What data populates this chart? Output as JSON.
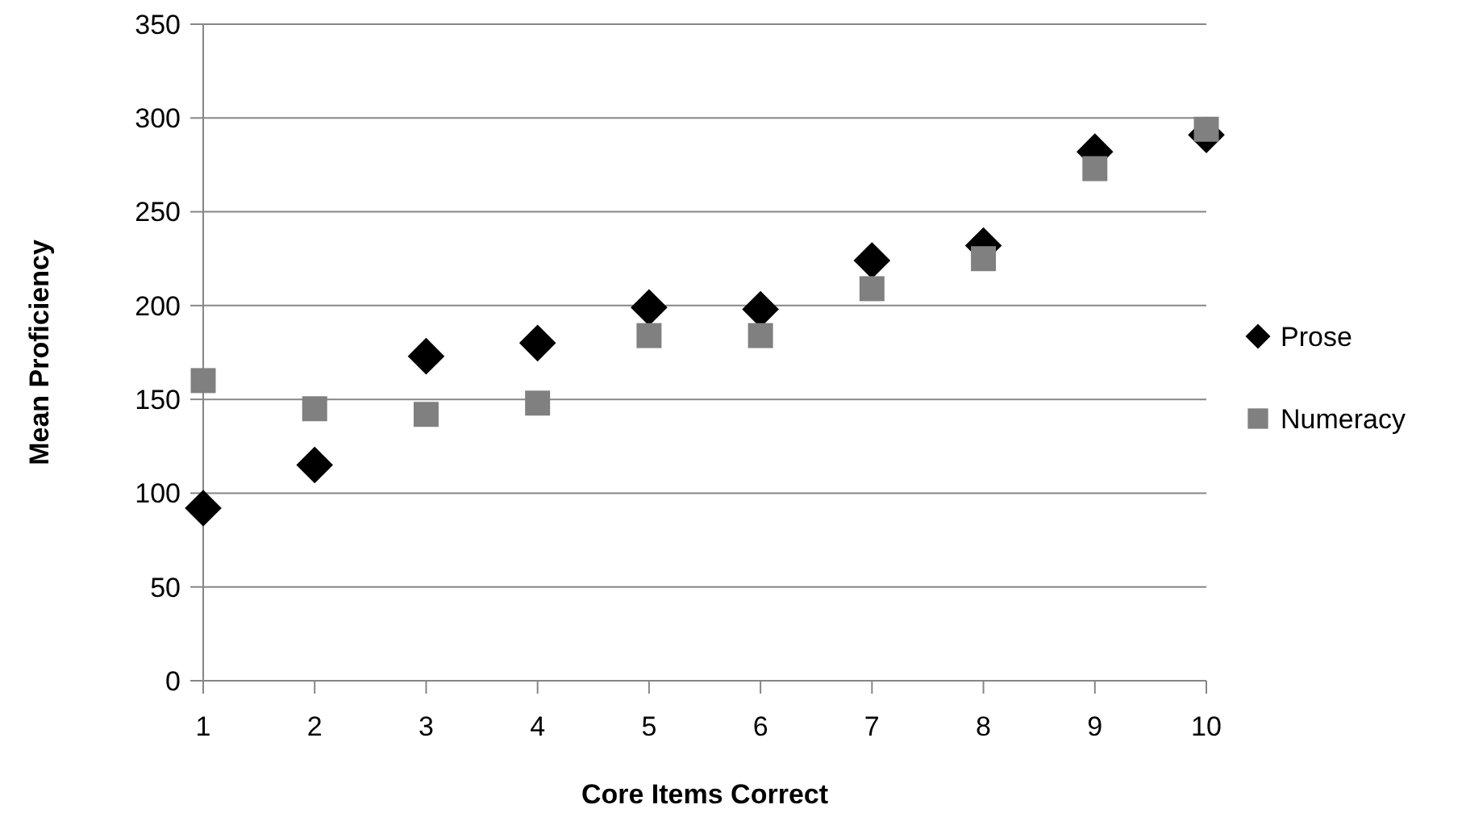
{
  "chart_data": {
    "type": "scatter",
    "xlabel": "Core Items Correct",
    "ylabel": "Mean Proficiency",
    "x": [
      1,
      2,
      3,
      4,
      5,
      6,
      7,
      8,
      9,
      10
    ],
    "xlim": [
      1,
      10
    ],
    "xticks": [
      1,
      2,
      3,
      4,
      5,
      6,
      7,
      8,
      9,
      10
    ],
    "ylim": [
      0,
      350
    ],
    "yticks": [
      0,
      50,
      100,
      150,
      200,
      250,
      300,
      350
    ],
    "grid": "y",
    "legend": "right",
    "series": [
      {
        "name": "Prose",
        "color": "#000000",
        "marker": "diamond",
        "values": [
          92,
          115,
          173,
          180,
          199,
          198,
          224,
          232,
          282,
          291
        ]
      },
      {
        "name": "Numeracy",
        "color": "#808080",
        "marker": "square",
        "values": [
          160,
          145,
          142,
          148,
          184,
          184,
          209,
          225,
          273,
          294
        ]
      }
    ]
  }
}
